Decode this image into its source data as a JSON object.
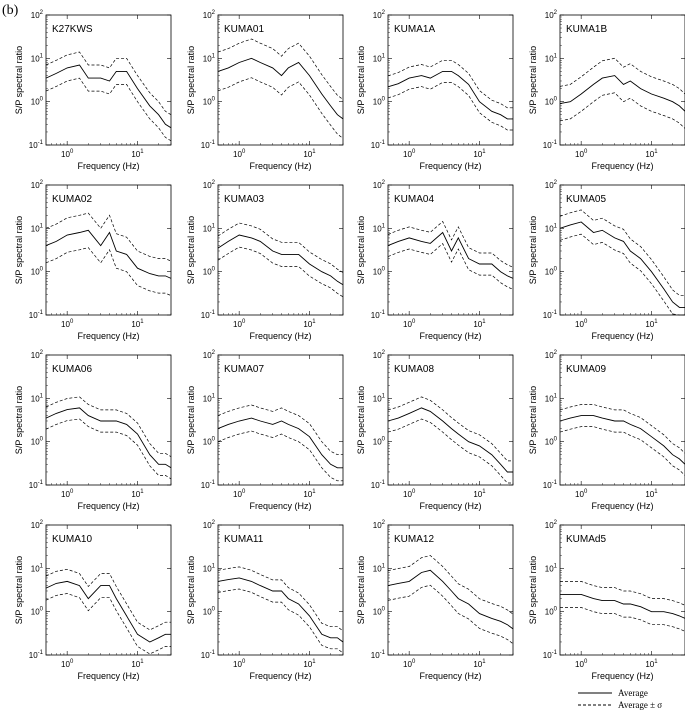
{
  "figure": {
    "panel_label": "(b)",
    "legend": [
      {
        "label": "Average",
        "style": "solid"
      },
      {
        "label": "Average ± σ",
        "style": "dashed"
      }
    ],
    "colors": {
      "line": "#000000",
      "background": "#ffffff"
    }
  },
  "chart_data": {
    "type": "line",
    "layout": "4x4 small multiples",
    "shared": {
      "xlabel": "Frequency (Hz)",
      "ylabel": "S/P spectral ratio",
      "xscale": "log",
      "yscale": "log",
      "xlim": [
        0.5,
        30
      ],
      "ylim": [
        0.1,
        100
      ],
      "xticks": [
        {
          "value": 1,
          "base": "10",
          "exp": "0"
        },
        {
          "value": 10,
          "base": "10",
          "exp": "1"
        }
      ],
      "yticks": [
        {
          "value": 0.1,
          "base": "10",
          "exp": "-1"
        },
        {
          "value": 1,
          "base": "10",
          "exp": "0"
        },
        {
          "value": 10,
          "base": "10",
          "exp": "1"
        },
        {
          "value": 100,
          "base": "10",
          "exp": "2"
        }
      ],
      "frequency_hz": [
        0.5,
        0.7,
        1.0,
        1.5,
        2.0,
        3.0,
        4.0,
        5.0,
        7.0,
        10,
        15,
        20,
        25,
        30
      ]
    },
    "panels": [
      {
        "station": "K27KWS",
        "average": [
          3.5,
          4.5,
          6,
          7,
          3.5,
          3.5,
          3.0,
          5,
          5,
          2,
          0.8,
          0.5,
          0.3,
          0.25
        ],
        "sigma": 2.0
      },
      {
        "station": "KUMA01",
        "average": [
          5,
          6,
          8,
          10,
          8,
          6,
          4,
          6,
          8,
          4,
          1.5,
          0.8,
          0.5,
          0.4
        ],
        "sigma": 2.8
      },
      {
        "station": "KUMA1A",
        "average": [
          2.2,
          2.6,
          3.5,
          4,
          3.5,
          5,
          5,
          4,
          2.5,
          1,
          0.6,
          0.5,
          0.4,
          0.4
        ],
        "sigma": 1.8
      },
      {
        "station": "KUMA1B",
        "average": [
          0.9,
          1.0,
          1.5,
          2.5,
          3.5,
          4,
          2.5,
          3,
          2,
          1.5,
          1.2,
          1.0,
          0.8,
          0.6
        ],
        "sigma": 2.5
      },
      {
        "station": "KUMA02",
        "average": [
          4,
          5,
          7,
          8,
          9,
          4,
          8,
          3,
          2.5,
          1.2,
          0.9,
          0.8,
          0.8,
          0.7
        ],
        "sigma": 2.5
      },
      {
        "station": "KUMA03",
        "average": [
          3.5,
          5,
          7,
          6,
          5,
          3,
          2.5,
          2.5,
          2.5,
          1.5,
          1.0,
          0.8,
          0.6,
          0.5
        ],
        "sigma": 1.9
      },
      {
        "station": "KUMA04",
        "average": [
          4,
          5,
          6,
          5,
          4.5,
          8,
          3,
          6,
          2,
          1.5,
          1.5,
          1.0,
          0.8,
          0.7
        ],
        "sigma": 1.8
      },
      {
        "station": "KUMA05",
        "average": [
          10,
          12,
          14,
          8,
          9,
          6,
          5,
          3,
          2,
          1.0,
          0.4,
          0.2,
          0.15,
          0.15
        ],
        "sigma": 1.9
      },
      {
        "station": "KUMA06",
        "average": [
          3.5,
          4.5,
          5.5,
          6,
          4,
          3,
          3,
          3,
          2.5,
          1.5,
          0.5,
          0.3,
          0.3,
          0.25
        ],
        "sigma": 1.8
      },
      {
        "station": "KUMA07",
        "average": [
          2,
          2.5,
          3,
          3.5,
          3,
          2.5,
          3,
          2.5,
          2,
          1.3,
          0.5,
          0.3,
          0.25,
          0.25
        ],
        "sigma": 2.0
      },
      {
        "station": "KUMA08",
        "average": [
          3,
          3.5,
          4.5,
          6,
          5,
          3,
          2,
          1.5,
          1.0,
          0.8,
          0.5,
          0.3,
          0.2,
          0.2
        ],
        "sigma": 1.8
      },
      {
        "station": "KUMA09",
        "average": [
          3,
          3.5,
          4,
          4,
          3.5,
          3,
          3,
          2.5,
          2.0,
          1.3,
          0.8,
          0.5,
          0.4,
          0.3
        ],
        "sigma": 1.8
      },
      {
        "station": "KUMA10",
        "average": [
          3.5,
          4.5,
          5,
          4,
          2,
          4,
          4,
          2,
          0.8,
          0.3,
          0.2,
          0.25,
          0.3,
          0.3
        ],
        "sigma": 1.9
      },
      {
        "station": "KUMA11",
        "average": [
          5,
          5.5,
          6,
          5,
          4,
          3,
          3,
          2,
          1.5,
          0.8,
          0.3,
          0.25,
          0.25,
          0.2
        ],
        "sigma": 1.8
      },
      {
        "station": "KUMA12",
        "average": [
          4,
          4.5,
          5,
          8,
          9,
          5,
          3,
          2,
          1.5,
          0.9,
          0.7,
          0.6,
          0.5,
          0.4
        ],
        "sigma": 2.2
      },
      {
        "station": "KUMAd5",
        "average": [
          2.5,
          2.5,
          2.5,
          2.0,
          1.8,
          1.8,
          1.5,
          1.5,
          1.3,
          1.0,
          1.0,
          0.9,
          0.8,
          0.7
        ],
        "sigma": 2.0
      }
    ]
  }
}
